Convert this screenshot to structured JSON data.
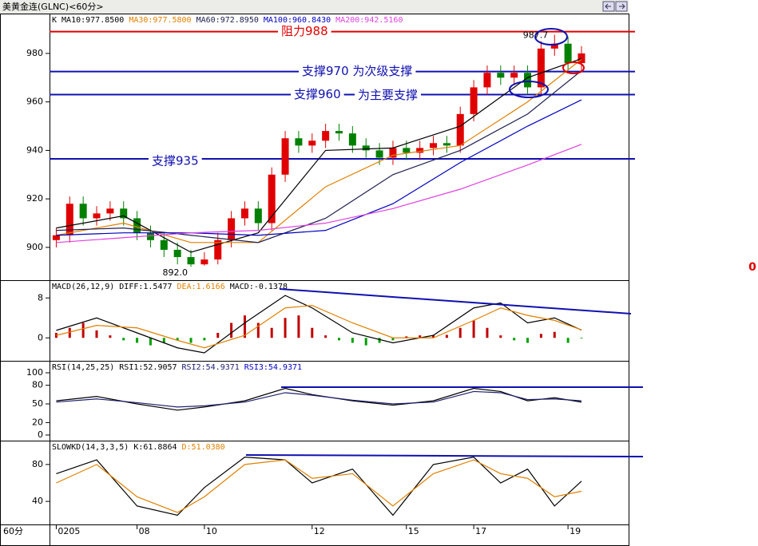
{
  "header": {
    "title": "美黄金连(GLNC)<60分>",
    "x_unit": "60分",
    "side_value": "0"
  },
  "chart_data": [
    {
      "type": "candlestick",
      "name": "K",
      "xlim": [
        -0.5,
        42.5
      ],
      "xticks": [
        {
          "value": 0,
          "label": "0205"
        },
        {
          "value": 6,
          "label": "08"
        },
        {
          "value": 11,
          "label": "10"
        },
        {
          "value": 19,
          "label": "12"
        },
        {
          "value": 26,
          "label": "15"
        },
        {
          "value": 31,
          "label": "17"
        },
        {
          "value": 38,
          "label": "19"
        }
      ],
      "ylim": [
        886.8,
        996.1
      ],
      "yticks": [
        900,
        920,
        940,
        960,
        980
      ],
      "up_color": "#e00000",
      "down_color": "#008000",
      "candles": {
        "open": [
          903,
          905,
          918,
          912,
          914,
          916,
          912,
          906,
          903,
          899,
          896,
          893,
          895,
          903,
          912,
          916,
          910,
          930,
          945,
          942,
          944,
          948,
          947,
          942,
          940,
          937,
          941,
          939,
          941,
          943,
          942,
          955,
          966,
          972,
          970,
          972,
          966,
          982,
          984,
          976
        ],
        "high": [
          908,
          921,
          921,
          917,
          919,
          919,
          915,
          909,
          906,
          902,
          899,
          898,
          906,
          915,
          919,
          919,
          933,
          948,
          948,
          947,
          951,
          951,
          950,
          945,
          943,
          944,
          944,
          944,
          946,
          946,
          958,
          969,
          975,
          975,
          975,
          975,
          985,
          987.7,
          987,
          983
        ],
        "low": [
          900,
          902,
          909,
          909,
          911,
          909,
          903,
          900,
          896,
          893,
          892,
          892.5,
          893,
          900,
          909,
          907,
          907,
          927,
          939,
          939,
          941,
          944,
          939,
          937,
          934,
          934,
          936,
          936,
          938,
          939,
          939,
          952,
          963,
          967,
          967,
          963,
          963,
          979,
          973,
          973
        ],
        "close": [
          905,
          918,
          912,
          914,
          916,
          912,
          906,
          903,
          899,
          896,
          893,
          895,
          903,
          912,
          916,
          910,
          930,
          945,
          942,
          944,
          948,
          947,
          942,
          940,
          937,
          941,
          939,
          941,
          943,
          942,
          955,
          966,
          972,
          970,
          972,
          966,
          982,
          984,
          976,
          980
        ]
      },
      "series": [
        {
          "name": "MA10:977.8500",
          "color": "#000000",
          "x": [
            0,
            5,
            10,
            15,
            20,
            25,
            30,
            35,
            39
          ],
          "values": [
            908,
            913,
            898,
            906,
            940,
            941,
            950,
            970,
            977.85
          ]
        },
        {
          "name": "MA30:977.5800",
          "color": "#e08000",
          "x": [
            0,
            5,
            10,
            15,
            20,
            25,
            30,
            35,
            39
          ],
          "values": [
            905,
            910,
            902,
            902,
            925,
            938,
            942,
            960,
            977.58
          ]
        },
        {
          "name": "MA60:972.8950",
          "color": "#202050",
          "x": [
            0,
            5,
            10,
            15,
            20,
            25,
            30,
            35,
            39
          ],
          "values": [
            907,
            908,
            905,
            902,
            912,
            930,
            940,
            955,
            972.895
          ]
        },
        {
          "name": "MA100:960.8430",
          "color": "#0000c0",
          "x": [
            0,
            5,
            10,
            15,
            20,
            25,
            30,
            35,
            39
          ],
          "values": [
            905,
            906,
            906,
            905,
            907,
            918,
            935,
            950,
            960.843
          ]
        },
        {
          "name": "MA200:942.5160",
          "color": "#e040e0",
          "x": [
            0,
            5,
            10,
            15,
            20,
            25,
            30,
            35,
            39
          ],
          "values": [
            902,
            904,
            906,
            907,
            910,
            916,
            924,
            934,
            942.516
          ]
        }
      ],
      "levels": [
        {
          "value": 989,
          "color": "#e00000",
          "labels": [
            "阻力988"
          ]
        },
        {
          "value": 972.5,
          "color": "#1010b0",
          "labels": [
            "支撑970 为次级支撑"
          ]
        },
        {
          "value": 963,
          "color": "#1010b0",
          "labels": [
            "支撑960",
            "为主要支撑"
          ]
        },
        {
          "value": 936.5,
          "color": "#1010b0",
          "labels": [
            "支撑935"
          ]
        }
      ],
      "high_label": 987.7,
      "low_label": {
        "value": 892,
        "label": "892.0"
      }
    },
    {
      "type": "macd",
      "name": "MACD(26,12,9)",
      "ylim": [
        -4.6,
        11.4
      ],
      "yticks": [
        0,
        8
      ],
      "bars": {
        "name": "MACD:-0.1378",
        "up_color": "#c00000",
        "down_color": "#00a000",
        "values": [
          1,
          2,
          3,
          1.5,
          0.5,
          -0.5,
          -1,
          -1.5,
          -1,
          -0.5,
          -1,
          -0.5,
          1,
          3,
          4.5,
          3,
          2,
          4,
          4.5,
          2,
          0.5,
          -0.5,
          -1,
          -1.5,
          -1,
          -0.5,
          0.3,
          0.5,
          0.5,
          0.6,
          2,
          3.5,
          2,
          0.5,
          -0.5,
          -1,
          0.8,
          1.2,
          -1,
          -0.1378
        ]
      },
      "series": [
        {
          "name": "DIFF:1.5477",
          "color": "#000000",
          "x": [
            0,
            3,
            6,
            9,
            11,
            14,
            17,
            19,
            22,
            25,
            28,
            31,
            33,
            35,
            37,
            39
          ],
          "values": [
            1.5,
            4,
            1,
            -2,
            -3,
            3,
            8.5,
            6,
            1,
            -1,
            0.5,
            6,
            7,
            3,
            4,
            1.5477
          ]
        },
        {
          "name": "DEA:1.6166",
          "color": "#e08000",
          "x": [
            0,
            3,
            6,
            9,
            11,
            14,
            17,
            19,
            22,
            25,
            28,
            31,
            33,
            35,
            37,
            39
          ],
          "values": [
            0.5,
            2.5,
            2,
            -0.5,
            -2,
            0.5,
            6,
            6.5,
            3,
            0,
            0,
            3.5,
            6,
            4.5,
            3.5,
            1.6166
          ]
        }
      ]
    },
    {
      "type": "line",
      "name": "RSI(14,25,25)",
      "ylim": [
        -9,
        118
      ],
      "yticks": [
        0,
        20,
        50,
        80,
        100
      ],
      "series": [
        {
          "name": "RSI1:52.9057",
          "color": "#000000",
          "x": [
            0,
            3,
            6,
            9,
            11,
            14,
            17,
            19,
            22,
            25,
            28,
            31,
            33,
            35,
            37,
            39
          ],
          "values": [
            55,
            62,
            50,
            40,
            45,
            55,
            75,
            65,
            55,
            48,
            55,
            75,
            70,
            55,
            60,
            52.9057
          ]
        },
        {
          "name": "RSI2:54.9371",
          "color": "#202070",
          "x": [
            0,
            3,
            6,
            9,
            11,
            14,
            17,
            19,
            22,
            25,
            28,
            31,
            33,
            35,
            37,
            39
          ],
          "values": [
            53,
            58,
            52,
            45,
            47,
            53,
            68,
            64,
            56,
            50,
            53,
            70,
            68,
            57,
            58,
            54.9371
          ]
        }
      ],
      "extra_labels": [
        {
          "text": "RSI3:54.9371",
          "color": "#0000c0"
        }
      ]
    },
    {
      "type": "line",
      "name": "SLOWKD(14,3,3,5)",
      "ylim": [
        15,
        105
      ],
      "yticks": [
        40,
        80
      ],
      "series": [
        {
          "name": "K:61.8864",
          "color": "#000000",
          "x": [
            0,
            3,
            6,
            9,
            11,
            14,
            17,
            19,
            22,
            25,
            28,
            31,
            33,
            35,
            37,
            39
          ],
          "values": [
            70,
            85,
            35,
            25,
            55,
            88,
            85,
            60,
            75,
            25,
            80,
            88,
            60,
            75,
            35,
            61.8864
          ]
        },
        {
          "name": "D:51.0380",
          "color": "#e08000",
          "x": [
            0,
            3,
            6,
            9,
            11,
            14,
            17,
            19,
            22,
            25,
            28,
            31,
            33,
            35,
            37,
            39
          ],
          "values": [
            60,
            80,
            45,
            28,
            45,
            80,
            85,
            65,
            70,
            35,
            70,
            85,
            70,
            65,
            45,
            51.038
          ]
        }
      ]
    }
  ]
}
